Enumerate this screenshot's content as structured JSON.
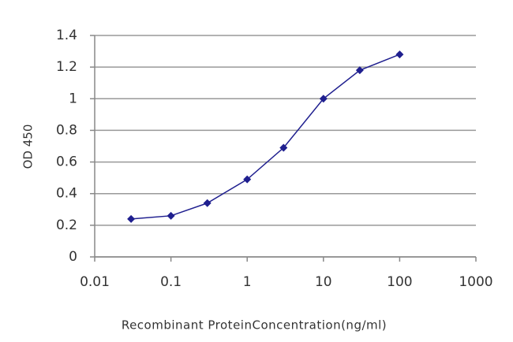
{
  "chart_data": {
    "type": "line",
    "x_label": "Recombinant ProteinConcentration(ng/ml)",
    "y_label": "OD 450",
    "x": [
      0.03,
      0.1,
      0.3,
      1,
      3,
      10,
      30,
      100
    ],
    "series": [
      {
        "color": "#1f1f8f",
        "values": [
          0.24,
          0.26,
          0.34,
          0.49,
          0.69,
          1.0,
          1.18,
          1.28
        ]
      }
    ],
    "xscale": "log",
    "xlim": [
      0.01,
      1000
    ],
    "xticks": [
      0.01,
      0.1,
      1,
      10,
      100,
      1000
    ],
    "ylim": [
      0,
      1.4
    ],
    "yticks": [
      0,
      0.2,
      0.4,
      0.6,
      0.8,
      1,
      1.2,
      1.4
    ],
    "grid": true
  }
}
